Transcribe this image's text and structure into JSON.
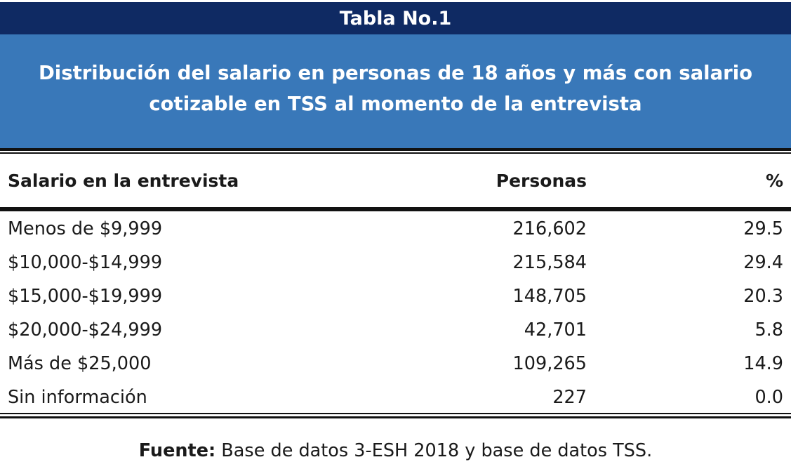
{
  "table_label": "Tabla No.1",
  "title_line1": "Distribución del salario en personas de 18 años y más con salario",
  "title_line2": "cotizable en TSS al momento de la entrevista",
  "columns": [
    "Salario en la entrevista",
    "Personas",
    "%"
  ],
  "rows": [
    {
      "label": "Menos de $9,999",
      "personas": "216,602",
      "pct": "29.5"
    },
    {
      "label": "$10,000-$14,999",
      "personas": "215,584",
      "pct": "29.4"
    },
    {
      "label": "$15,000-$19,999",
      "personas": "148,705",
      "pct": "20.3"
    },
    {
      "label": "$20,000-$24,999",
      "personas": "42,701",
      "pct": "5.8"
    },
    {
      "label": "Más de $25,000",
      "personas": "109,265",
      "pct": "14.9"
    },
    {
      "label": "Sin información",
      "personas": "227",
      "pct": "0.0"
    }
  ],
  "source": {
    "label": "Fuente:",
    "text": " Base de datos 3-ESH 2018 y base de datos TSS."
  },
  "colors": {
    "header_bar": "#0f2a63",
    "title_box": "#3978b9",
    "text": "#1a1a1a"
  }
}
